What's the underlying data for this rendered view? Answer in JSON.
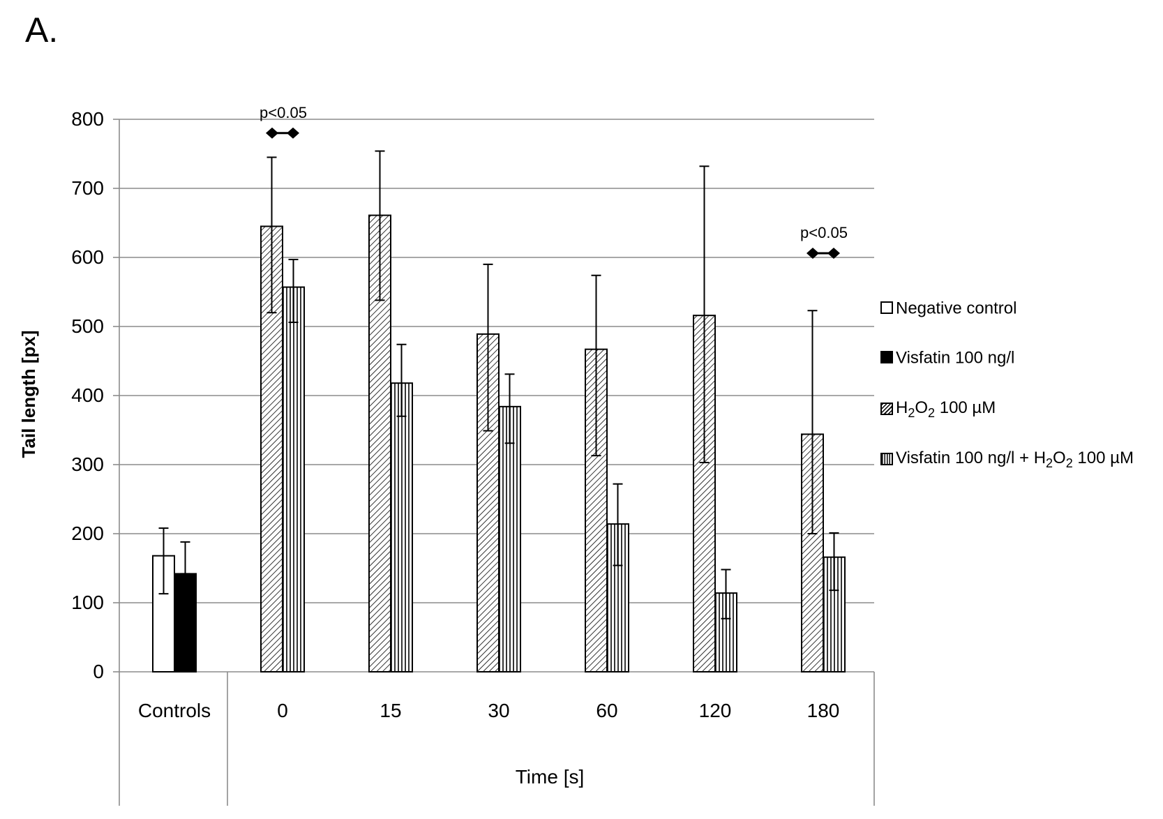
{
  "figure": {
    "panel_label": "A."
  },
  "chart_data": {
    "type": "bar",
    "ylabel": "Tail length [px]",
    "xlabel": "Time [s]",
    "ylim": [
      0,
      800
    ],
    "yticks": [
      0,
      100,
      200,
      300,
      400,
      500,
      600,
      700,
      800
    ],
    "grid": true,
    "legend_position": "right",
    "groups": [
      {
        "label": "Controls",
        "bars": [
          {
            "series": 0,
            "value": 168,
            "err_low": 113,
            "err_high": 208
          },
          {
            "series": 1,
            "value": 142,
            "err_low": 142,
            "err_high": 188
          }
        ]
      },
      {
        "label": "0",
        "bars": [
          {
            "series": 2,
            "value": 645,
            "err_low": 520,
            "err_high": 745
          },
          {
            "series": 3,
            "value": 557,
            "err_low": 506,
            "err_high": 597
          }
        ]
      },
      {
        "label": "15",
        "bars": [
          {
            "series": 2,
            "value": 661,
            "err_low": 538,
            "err_high": 754
          },
          {
            "series": 3,
            "value": 418,
            "err_low": 370,
            "err_high": 474
          }
        ]
      },
      {
        "label": "30",
        "bars": [
          {
            "series": 2,
            "value": 489,
            "err_low": 349,
            "err_high": 590
          },
          {
            "series": 3,
            "value": 384,
            "err_low": 331,
            "err_high": 431
          }
        ]
      },
      {
        "label": "60",
        "bars": [
          {
            "series": 2,
            "value": 467,
            "err_low": 313,
            "err_high": 574
          },
          {
            "series": 3,
            "value": 214,
            "err_low": 154,
            "err_high": 272
          }
        ]
      },
      {
        "label": "120",
        "bars": [
          {
            "series": 2,
            "value": 516,
            "err_low": 303,
            "err_high": 732
          },
          {
            "series": 3,
            "value": 114,
            "err_low": 77,
            "err_high": 148
          }
        ]
      },
      {
        "label": "180",
        "bars": [
          {
            "series": 2,
            "value": 344,
            "err_low": 200,
            "err_high": 523
          },
          {
            "series": 3,
            "value": 166,
            "err_low": 118,
            "err_high": 201
          }
        ]
      }
    ],
    "series": [
      {
        "name": "Negative control",
        "fill": "white"
      },
      {
        "name": "Visfatin 100 ng/l",
        "fill": "black"
      },
      {
        "name": "H2O2 100 µM",
        "fill": "diagonal-hatch"
      },
      {
        "name": "Visfatin 100 ng/l + H2O2 100 µM",
        "fill": "vertical-hatch"
      }
    ],
    "annotations": [
      {
        "text": "p<0.05",
        "group": "0",
        "y": 780
      },
      {
        "text": "p<0.05",
        "group": "180",
        "y": 606
      }
    ],
    "colors": {
      "ink": "#000000",
      "grid": "#8c8c8c",
      "bar_fill": "#ffffff"
    }
  }
}
